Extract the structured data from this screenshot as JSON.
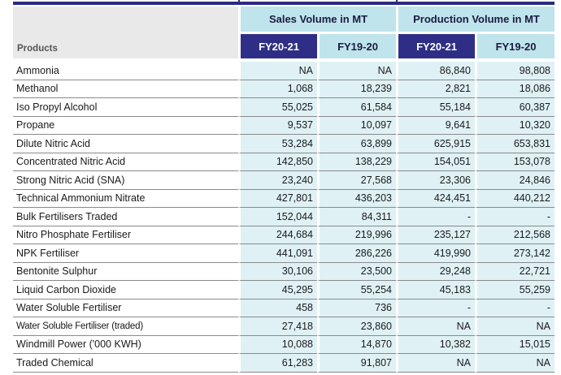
{
  "header": {
    "products_label": "Products",
    "sales_group": "Sales Volume in MT",
    "production_group": "Production Volume in MT",
    "years": [
      "FY20-21",
      "FY19-20",
      "FY20-21",
      "FY19-20"
    ]
  },
  "rows": [
    {
      "product": "Ammonia",
      "values": [
        "NA",
        "NA",
        "86,840",
        "98,808"
      ]
    },
    {
      "product": "Methanol",
      "values": [
        "1,068",
        "18,239",
        "2,821",
        "18,086"
      ]
    },
    {
      "product": "Iso Propyl Alcohol",
      "values": [
        "55,025",
        "61,584",
        "55,184",
        "60,387"
      ]
    },
    {
      "product": "Propane",
      "values": [
        "9,537",
        "10,097",
        "9,641",
        "10,320"
      ]
    },
    {
      "product": "Dilute Nitric Acid",
      "values": [
        "53,284",
        "63,899",
        "625,915",
        "653,831"
      ]
    },
    {
      "product": "Concentrated Nitric Acid",
      "values": [
        "142,850",
        "138,229",
        "154,051",
        "153,078"
      ]
    },
    {
      "product": "Strong Nitric Acid (SNA)",
      "values": [
        "23,240",
        "27,568",
        "23,306",
        "24,846"
      ]
    },
    {
      "product": "Technical Ammonium Nitrate",
      "values": [
        "427,801",
        "436,203",
        "424,451",
        "440,212"
      ]
    },
    {
      "product": "Bulk Fertilisers Traded",
      "values": [
        "152,044",
        "84,311",
        "-",
        "-"
      ]
    },
    {
      "product": "Nitro Phosphate Fertiliser",
      "values": [
        "244,684",
        "219,996",
        "235,127",
        "212,568"
      ]
    },
    {
      "product": "NPK Fertiliser",
      "values": [
        "441,091",
        "286,226",
        "419,990",
        "273,142"
      ]
    },
    {
      "product": "Bentonite Sulphur",
      "values": [
        "30,106",
        "23,500",
        "29,248",
        "22,721"
      ]
    },
    {
      "product": "Liquid Carbon Dioxide",
      "values": [
        "45,295",
        "55,254",
        "45,183",
        "55,259"
      ]
    },
    {
      "product": "Water Soluble Fertiliser",
      "values": [
        "458",
        "736",
        "-",
        "-"
      ]
    },
    {
      "product": "Water Soluble Fertiliser (traded)",
      "values": [
        "27,418",
        "23,860",
        "NA",
        "NA"
      ]
    },
    {
      "product": "Windmill Power ('000 KWH)",
      "values": [
        "10,088",
        "14,870",
        "10,382",
        "15,015"
      ]
    },
    {
      "product": "Traded Chemical",
      "values": [
        "61,283",
        "91,807",
        "NA",
        "NA"
      ]
    }
  ]
}
